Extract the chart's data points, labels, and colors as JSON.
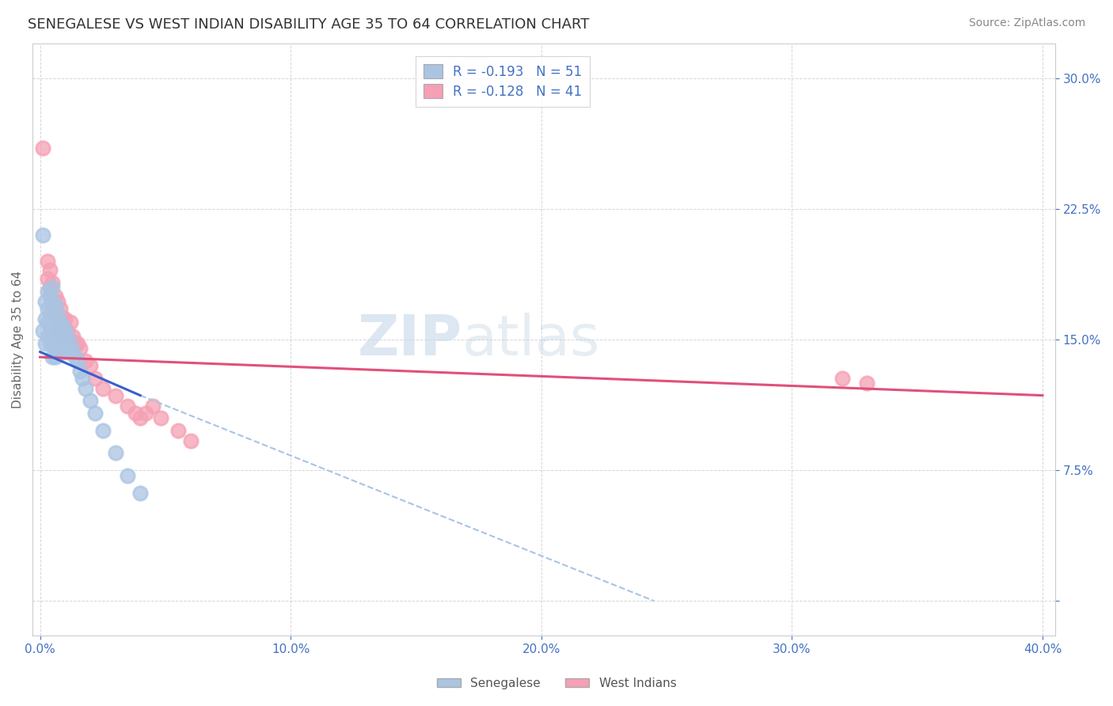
{
  "title": "SENEGALESE VS WEST INDIAN DISABILITY AGE 35 TO 64 CORRELATION CHART",
  "source": "Source: ZipAtlas.com",
  "ylabel": "Disability Age 35 to 64",
  "xlim": [
    0.0,
    0.4
  ],
  "ylim": [
    -0.02,
    0.32
  ],
  "ytick_values": [
    0.0,
    0.075,
    0.15,
    0.225,
    0.3
  ],
  "ytick_labels": [
    "",
    "7.5%",
    "15.0%",
    "22.5%",
    "30.0%"
  ],
  "xtick_values": [
    0.0,
    0.1,
    0.2,
    0.3,
    0.4
  ],
  "xtick_labels": [
    "0.0%",
    "10.0%",
    "20.0%",
    "30.0%",
    "40.0%"
  ],
  "legend_line1": "R = -0.193   N = 51",
  "legend_line2": "R = -0.128   N = 41",
  "senegalese_color": "#aac4e2",
  "westindian_color": "#f5a0b4",
  "trend_sen_solid_color": "#3a5fcd",
  "trend_sen_dashed_color": "#aac4e2",
  "trend_wi_color": "#e0507a",
  "background_color": "#ffffff",
  "grid_color": "#cccccc",
  "title_color": "#333333",
  "axis_label_color": "#4472c4",
  "watermark_color": "#dce8f4",
  "senegalese_x": [
    0.001,
    0.001,
    0.002,
    0.002,
    0.002,
    0.003,
    0.003,
    0.003,
    0.003,
    0.004,
    0.004,
    0.004,
    0.004,
    0.005,
    0.005,
    0.005,
    0.005,
    0.005,
    0.005,
    0.006,
    0.006,
    0.006,
    0.006,
    0.006,
    0.007,
    0.007,
    0.007,
    0.007,
    0.008,
    0.008,
    0.008,
    0.009,
    0.009,
    0.009,
    0.01,
    0.01,
    0.011,
    0.011,
    0.012,
    0.013,
    0.014,
    0.015,
    0.016,
    0.017,
    0.018,
    0.02,
    0.022,
    0.025,
    0.03,
    0.035,
    0.04
  ],
  "senegalese_y": [
    0.21,
    0.155,
    0.172,
    0.162,
    0.148,
    0.178,
    0.168,
    0.16,
    0.152,
    0.175,
    0.165,
    0.158,
    0.148,
    0.18,
    0.172,
    0.163,
    0.155,
    0.148,
    0.14,
    0.17,
    0.163,
    0.155,
    0.148,
    0.14,
    0.165,
    0.158,
    0.15,
    0.143,
    0.16,
    0.152,
    0.145,
    0.158,
    0.15,
    0.143,
    0.155,
    0.148,
    0.152,
    0.143,
    0.148,
    0.143,
    0.14,
    0.138,
    0.132,
    0.128,
    0.122,
    0.115,
    0.108,
    0.098,
    0.085,
    0.072,
    0.062
  ],
  "westindian_x": [
    0.001,
    0.003,
    0.003,
    0.004,
    0.004,
    0.005,
    0.005,
    0.005,
    0.006,
    0.006,
    0.007,
    0.007,
    0.007,
    0.008,
    0.008,
    0.009,
    0.009,
    0.01,
    0.01,
    0.011,
    0.012,
    0.012,
    0.013,
    0.014,
    0.015,
    0.016,
    0.018,
    0.02,
    0.022,
    0.025,
    0.03,
    0.035,
    0.038,
    0.04,
    0.042,
    0.045,
    0.048,
    0.055,
    0.06,
    0.32,
    0.33
  ],
  "westindian_y": [
    0.26,
    0.195,
    0.185,
    0.19,
    0.18,
    0.183,
    0.172,
    0.165,
    0.175,
    0.165,
    0.172,
    0.163,
    0.155,
    0.168,
    0.16,
    0.163,
    0.155,
    0.162,
    0.153,
    0.155,
    0.16,
    0.15,
    0.152,
    0.148,
    0.148,
    0.145,
    0.138,
    0.135,
    0.128,
    0.122,
    0.118,
    0.112,
    0.108,
    0.105,
    0.108,
    0.112,
    0.105,
    0.098,
    0.092,
    0.128,
    0.125
  ],
  "trend_wi_x_start": 0.0,
  "trend_wi_x_end": 0.4,
  "trend_wi_y_start": 0.14,
  "trend_wi_y_end": 0.118,
  "trend_sen_solid_x_start": 0.0,
  "trend_sen_solid_x_end": 0.04,
  "trend_sen_solid_y_start": 0.143,
  "trend_sen_solid_y_end": 0.118,
  "trend_sen_dashed_x_start": 0.04,
  "trend_sen_dashed_x_end": 0.245,
  "trend_sen_dashed_y_start": 0.118,
  "trend_sen_dashed_y_end": 0.0
}
